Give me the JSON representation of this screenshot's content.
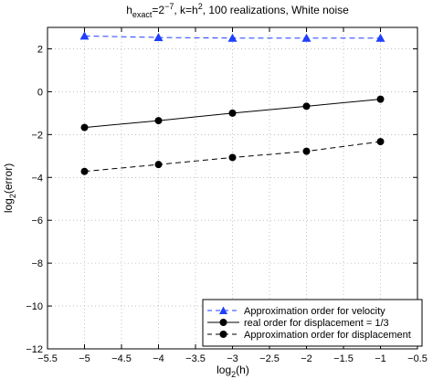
{
  "chart_data": {
    "type": "line",
    "title": {
      "h_main": "h",
      "h_sub": "exact",
      "h_eq": "=2",
      "h_exp": "−7",
      "k_main": ",    k=h",
      "k_exp": "2",
      "rest": ",    100 realizations,     White noise"
    },
    "xlabel": {
      "main": "log",
      "sub": "2",
      "rest": "(h)"
    },
    "ylabel": {
      "main": "log",
      "sub": "2",
      "rest": "(error)"
    },
    "xlim": [
      -5.5,
      -0.5
    ],
    "ylim": [
      -12,
      3
    ],
    "xticks": [
      "−5.5",
      "−5",
      "−4.5",
      "−4",
      "−3.5",
      "−3",
      "−2.5",
      "−2",
      "−1.5",
      "−1",
      "−0.5"
    ],
    "xtick_values": [
      -5.5,
      -5,
      -4.5,
      -4,
      -3.5,
      -3,
      -2.5,
      -2,
      -1.5,
      -1,
      -0.5
    ],
    "yticks": [
      "−12",
      "−10",
      "−8",
      "−6",
      "−4",
      "−2",
      "0",
      "2"
    ],
    "ytick_values": [
      -12,
      -10,
      -8,
      -6,
      -4,
      -2,
      0,
      2
    ],
    "grid": true,
    "legend_position": "bottom-right",
    "x": [
      -5,
      -4,
      -3,
      -2,
      -1
    ],
    "series": [
      {
        "name": "Approximation order for velocity",
        "values": [
          2.6,
          2.53,
          2.5,
          2.5,
          2.5
        ],
        "color": "#1f3fff",
        "dash": "dashed",
        "marker": "triangle"
      },
      {
        "name": "real order for displacement = 1/3",
        "values": [
          -1.67,
          -1.35,
          -1.0,
          -0.68,
          -0.35
        ],
        "color": "#000000",
        "dash": "solid",
        "marker": "circle"
      },
      {
        "name": "Approximation order for displacement",
        "values": [
          -3.72,
          -3.4,
          -3.07,
          -2.78,
          -2.33
        ],
        "color": "#000000",
        "dash": "dashed",
        "marker": "circle"
      }
    ]
  }
}
